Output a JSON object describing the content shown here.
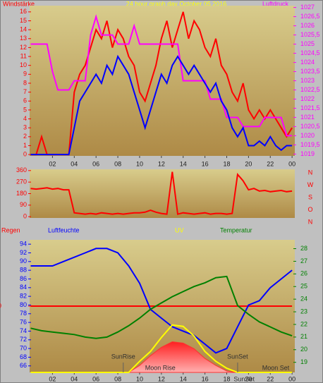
{
  "chart_data": [
    {
      "type": "line",
      "title": "24 hour graph day   October 05 2016",
      "ylabel": "Windstärke",
      "y2label": "Luftdruck",
      "x": [
        0,
        0.5,
        1,
        1.5,
        2,
        2.5,
        3,
        3.5,
        4,
        4.5,
        5,
        5.5,
        6,
        6.5,
        7,
        7.5,
        8,
        8.5,
        9,
        9.5,
        10,
        10.5,
        11,
        11.5,
        12,
        12.5,
        13,
        13.5,
        14,
        14.5,
        15,
        15.5,
        16,
        16.5,
        17,
        17.5,
        18,
        18.5,
        19,
        19.5,
        20,
        20.5,
        21,
        21.5,
        22,
        22.5,
        23,
        23.5,
        24
      ],
      "xlim": [
        -0.1,
        24.25
      ],
      "xticks": [
        {
          "value": 2,
          "label": "02"
        },
        {
          "value": 4,
          "label": "04"
        },
        {
          "value": 6,
          "label": "06"
        },
        {
          "value": 8,
          "label": "08"
        },
        10,
        12,
        14,
        16,
        18,
        20,
        22,
        {
          "value": 24,
          "label": "00"
        }
      ],
      "ylim": [
        -0.15,
        16.7
      ],
      "yticks": [
        0,
        1,
        2,
        3,
        4,
        5,
        6,
        7,
        8,
        9,
        10,
        11,
        12,
        13,
        14,
        15,
        16
      ],
      "ytick_color": "#ff0000",
      "y2lim": [
        1018.9,
        1027.1
      ],
      "y2ticks": [
        1019,
        {
          "value": 1019.5,
          "label": "1019,5"
        },
        1020,
        {
          "value": 1020.5,
          "label": "1020,5"
        },
        1021,
        {
          "value": 1021.5,
          "label": "1021,5"
        },
        1022,
        {
          "value": 1022.5,
          "label": "1022,5"
        },
        1023,
        {
          "value": 1023.5,
          "label": "1023,5"
        },
        1024,
        {
          "value": 1024.5,
          "label": "1024,5"
        },
        1025,
        {
          "value": 1025.5,
          "label": "1025,5"
        },
        1026,
        {
          "value": 1026.5,
          "label": "1026,5"
        },
        1027
      ],
      "y2tick_color": "#ff00ff",
      "series": [
        {
          "color": "#ff0000",
          "values": [
            0,
            0,
            2,
            0,
            0,
            0,
            0,
            0,
            7,
            9,
            10,
            12,
            14,
            13,
            15,
            12,
            14,
            13,
            11,
            10,
            7,
            6,
            8,
            10,
            13,
            15,
            12,
            14,
            16,
            13,
            15,
            14,
            12,
            11,
            13,
            10,
            9,
            7,
            6,
            8,
            5,
            4,
            5,
            4,
            5,
            4,
            3,
            2,
            3
          ]
        },
        {
          "color": "#ff00ff",
          "axis": "y2",
          "values": [
            1025,
            1025,
            1025,
            1025,
            1023.5,
            1022.5,
            1022.5,
            1022.5,
            1023,
            1023,
            1023,
            1025.5,
            1026.5,
            1025.5,
            1025.5,
            1025.5,
            1025,
            1025,
            1025,
            1026,
            1025,
            1025,
            1025,
            1025,
            1025,
            1025,
            1025,
            1025,
            1023,
            1023,
            1023,
            1023,
            1023,
            1022,
            1022,
            1022,
            1021,
            1021,
            1021,
            1020.5,
            1020.5,
            1020.5,
            1020.5,
            1021,
            1021,
            1021,
            1021,
            1020,
            1020
          ]
        },
        {
          "color": "#0000ff",
          "values": [
            0,
            0,
            0,
            0,
            0,
            0,
            0,
            0,
            3,
            6,
            7,
            8,
            9,
            8,
            10,
            9,
            11,
            10,
            9,
            7,
            5,
            3,
            5,
            7,
            9,
            8,
            10,
            11,
            10,
            9,
            10,
            9,
            8,
            7,
            8,
            6,
            5,
            3,
            2,
            3,
            1,
            1,
            1.5,
            1,
            2,
            1,
            0.5,
            1,
            1
          ]
        }
      ]
    },
    {
      "type": "line",
      "x": [
        0,
        0.5,
        1,
        1.5,
        2,
        2.5,
        3,
        3.5,
        4,
        4.5,
        5,
        5.5,
        6,
        6.5,
        7,
        7.5,
        8,
        8.5,
        9,
        9.5,
        10,
        10.5,
        11,
        11.5,
        12,
        12.5,
        13,
        13.5,
        14,
        14.5,
        15,
        15.5,
        16,
        16.5,
        17,
        17.5,
        18,
        18.5,
        19,
        19.5,
        20,
        20.5,
        21,
        21.5,
        22,
        22.5,
        23,
        23.5,
        24
      ],
      "xlim": [
        -0.1,
        24.25
      ],
      "ylim": [
        -10,
        370
      ],
      "yticks": [
        0,
        90,
        180,
        270,
        360
      ],
      "ytick_color": "#ff0000",
      "compass": [
        "N",
        "W",
        "S",
        "O",
        "N"
      ],
      "series": [
        {
          "color": "#ff0000",
          "values": [
            220,
            215,
            220,
            225,
            215,
            220,
            210,
            210,
            30,
            25,
            20,
            25,
            20,
            30,
            25,
            20,
            25,
            20,
            25,
            30,
            30,
            35,
            50,
            35,
            25,
            20,
            350,
            20,
            30,
            25,
            20,
            25,
            30,
            20,
            25,
            25,
            20,
            25,
            330,
            280,
            210,
            220,
            200,
            205,
            195,
            200,
            205,
            195,
            200
          ]
        }
      ]
    },
    {
      "type": "line",
      "x": [
        0,
        1,
        2,
        3,
        4,
        5,
        6,
        7,
        8,
        9,
        10,
        11,
        12,
        13,
        14,
        15,
        16,
        17,
        18,
        19,
        20,
        21,
        22,
        23,
        24
      ],
      "xlim": [
        -0.1,
        24.25
      ],
      "xticks": [
        {
          "value": 2,
          "label": "02"
        },
        {
          "value": 4,
          "label": "04"
        },
        {
          "value": 6,
          "label": "06"
        },
        {
          "value": 8,
          "label": "08"
        },
        10,
        12,
        14,
        16,
        18,
        20,
        22,
        {
          "value": 24,
          "label": "00"
        }
      ],
      "ylim": [
        64.5,
        95
      ],
      "yticks": [
        66,
        68,
        70,
        72,
        74,
        76,
        78,
        80,
        82,
        84,
        86,
        88,
        90,
        92,
        94
      ],
      "ytick_color": "#0000ff",
      "y2lim": [
        18.2,
        28.7
      ],
      "y2ticks": [
        19,
        20,
        21,
        22,
        23,
        24,
        25,
        26,
        27,
        28
      ],
      "y2tick_color": "#008000",
      "y3lim": [
        -1,
        1
      ],
      "y3ticks": [
        0
      ],
      "y3tick_color": "#ff0000",
      "y4lim": [
        0,
        9.5
      ],
      "series": [
        {
          "color": "#ff3030",
          "axis": "y4",
          "fill": true,
          "values": [
            0,
            0,
            0,
            0,
            0,
            0,
            0,
            0,
            0,
            0,
            0.5,
            1.2,
            1.8,
            2.2,
            2.1,
            1.7,
            1.0,
            0.5,
            0.1,
            0,
            0,
            0,
            0,
            0,
            0
          ]
        },
        {
          "name": "Regen",
          "color": "#ff0000",
          "axis": "y3",
          "values": [
            0,
            0,
            0,
            0,
            0,
            0,
            0,
            0,
            0,
            0,
            0,
            0,
            0,
            0,
            0,
            0,
            0,
            0,
            0,
            0,
            0,
            0,
            0,
            0,
            0
          ]
        },
        {
          "name": "Luftfeuchte",
          "color": "#0000ff",
          "values": [
            89,
            89,
            89,
            90,
            91,
            92,
            93,
            93,
            92,
            89,
            85,
            79,
            77,
            75,
            74,
            73,
            71,
            69,
            70,
            75,
            80,
            81,
            84,
            86,
            88
          ]
        },
        {
          "name": "UV",
          "color": "#ffff00",
          "axis": "y4",
          "values": [
            0,
            0,
            0,
            0,
            0,
            0,
            0,
            0,
            0,
            0,
            0.8,
            1.5,
            2.5,
            3.4,
            3.3,
            2.6,
            1.5,
            0.8,
            0.3,
            0,
            0,
            0,
            0,
            0,
            0
          ]
        },
        {
          "name": "Temperatur",
          "color": "#008000",
          "axis": "y2",
          "values": [
            21.7,
            21.5,
            21.4,
            21.3,
            21.2,
            21.0,
            20.9,
            21.0,
            21.4,
            21.9,
            22.5,
            23.2,
            23.7,
            24.2,
            24.6,
            25,
            25.3,
            25.7,
            25.8,
            23.5,
            22.8,
            22.2,
            21.8,
            21.4,
            21.1
          ]
        }
      ],
      "annotations": [
        {
          "x": 8.5,
          "label": "SunRise"
        },
        {
          "x": 19.0,
          "label": "SunSet"
        },
        {
          "x": 11.9,
          "label": "Moon Rise"
        },
        {
          "x": 22.5,
          "label": "Moon Set"
        },
        {
          "x": 19.6,
          "label": "SunSet"
        }
      ]
    }
  ]
}
